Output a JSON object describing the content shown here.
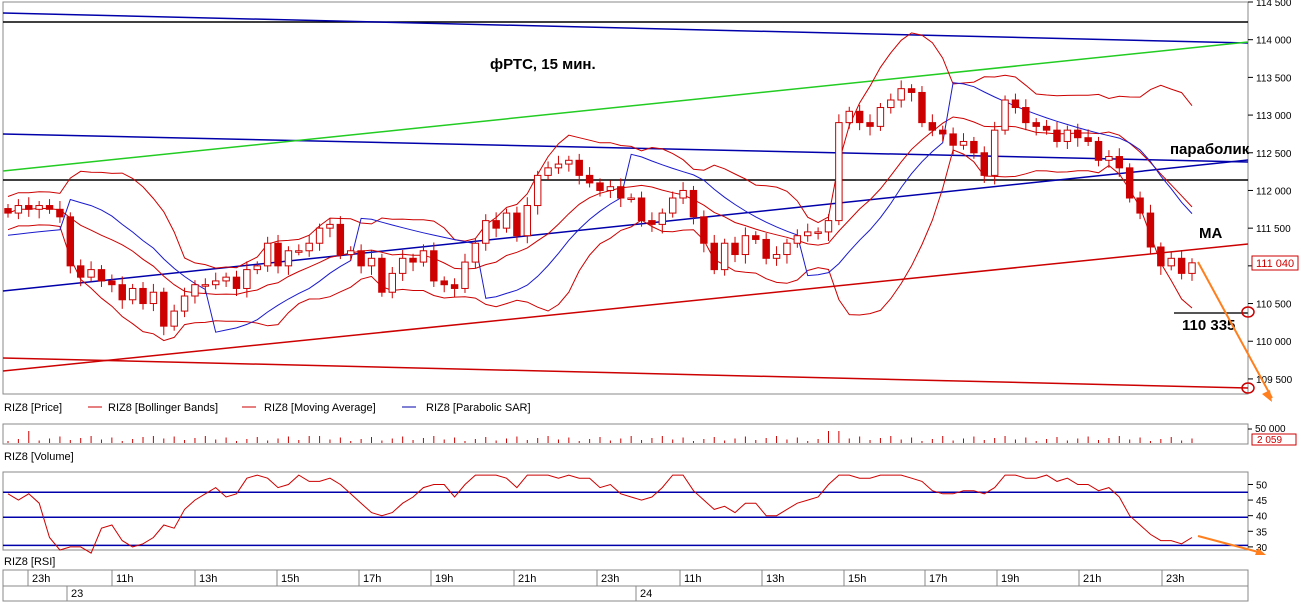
{
  "chart_data": [
    {
      "type": "candlestick",
      "panel": "price",
      "title": "фРТС, 15 мин.",
      "ylim": [
        109300,
        114500
      ],
      "yticks": [
        "114 500",
        "114 000",
        "113 500",
        "113 000",
        "112 500",
        "112 000",
        "111 500",
        "111 000",
        "110 500",
        "110 000",
        "109 500"
      ],
      "yticks_values": [
        114500,
        114000,
        113500,
        113000,
        112500,
        112000,
        111500,
        111000,
        110500,
        110000,
        109500
      ],
      "last_price_label": "111 040",
      "last_price": 111040,
      "target_label": "110 335",
      "target_value": 110335,
      "annotations": {
        "parabolic": "параболик",
        "ma": "MA"
      },
      "legend": [
        {
          "name": "RIZ8 [Price]",
          "color": "#cc0000"
        },
        {
          "name": "RIZ8 [Bollinger Bands]",
          "color": "#cc0000"
        },
        {
          "name": "RIZ8 [Moving Average]",
          "color": "#cc0000"
        },
        {
          "name": "RIZ8 [Parabolic SAR]",
          "color": "#0000aa"
        }
      ],
      "closes": [
        111700,
        111800,
        111750,
        111800,
        111750,
        111650,
        111000,
        110850,
        110950,
        110800,
        110750,
        110550,
        110700,
        110500,
        110650,
        110200,
        110400,
        110600,
        110750,
        110750,
        110800,
        110850,
        110700,
        110950,
        111000,
        111300,
        111000,
        111200,
        111200,
        111300,
        111500,
        111550,
        111150,
        111200,
        111000,
        111100,
        110650,
        110900,
        111100,
        111050,
        111200,
        110800,
        110750,
        110700,
        111050,
        111300,
        111600,
        111500,
        111700,
        111400,
        111800,
        112200,
        112300,
        112350,
        112400,
        112200,
        112100,
        112000,
        112050,
        111900,
        111900,
        111600,
        111550,
        111700,
        111900,
        112000,
        111650,
        111300,
        110950,
        111300,
        111150,
        111400,
        111350,
        111100,
        111150,
        111300,
        111400,
        111450,
        111450,
        111600,
        112900,
        113050,
        112900,
        112850,
        113100,
        113200,
        113350,
        113300,
        112900,
        112800,
        112750,
        112600,
        112650,
        112500,
        112200,
        112800,
        113200,
        113100,
        112900,
        112850,
        112800,
        112650,
        112800,
        112700,
        112650,
        112400,
        112450,
        112300,
        111900,
        111700,
        111250,
        111000,
        111100,
        110900,
        111040
      ]
    },
    {
      "type": "bar",
      "panel": "volume",
      "label": "RIZ8 [Volume]",
      "ylim": [
        0,
        60000
      ],
      "yticks": [
        "50 000"
      ],
      "yticks_values": [
        50000
      ],
      "last_value_label": "2 059",
      "last_value": 2059
    },
    {
      "type": "line",
      "panel": "rsi",
      "label": "RIZ8 [RSI]",
      "ylim": [
        29,
        54
      ],
      "yticks": [
        "50",
        "45",
        "40",
        "35",
        "30"
      ],
      "yticks_values": [
        50,
        45,
        40,
        35,
        30
      ],
      "levels": [
        47.5,
        39.5,
        30.5
      ],
      "values": [
        47,
        45,
        47,
        44,
        33,
        29,
        30,
        30,
        28,
        36,
        37,
        32,
        30,
        31,
        33,
        37,
        36,
        42,
        45,
        47,
        49,
        46,
        47,
        52,
        53,
        52,
        49,
        50,
        53,
        51,
        51,
        52,
        50,
        47,
        44,
        41,
        40,
        41,
        44,
        46,
        49,
        50,
        50,
        46,
        50,
        53,
        53,
        53,
        52,
        49,
        53,
        53,
        53,
        52,
        53,
        52,
        52,
        49,
        50,
        47,
        46,
        45,
        46,
        49,
        53,
        53,
        48,
        45,
        42,
        43,
        41,
        44,
        44,
        40,
        40,
        42,
        44,
        45,
        46,
        50,
        53,
        53,
        52,
        52,
        53,
        53,
        53,
        52,
        51,
        48,
        47,
        47,
        48,
        48,
        47,
        49,
        53,
        53,
        52,
        52,
        53,
        51,
        52,
        50,
        50,
        48,
        49,
        46,
        40,
        37,
        34,
        32,
        32,
        31,
        33
      ]
    }
  ],
  "time_axis": {
    "hours": [
      "23h",
      "11h",
      "13h",
      "15h",
      "17h",
      "19h",
      "21h",
      "23h",
      "11h",
      "13h",
      "15h",
      "17h",
      "19h",
      "21h",
      "23h"
    ],
    "days": [
      "23",
      "24"
    ]
  },
  "colors": {
    "candle": "#cc0000",
    "band": "#cc0000",
    "sar": "#1a1acc",
    "trend_blue": "#0000aa",
    "trend_green": "#22cc22",
    "trend_red": "#cc0000",
    "arrow": "#ff7f1e",
    "black": "#000000"
  }
}
